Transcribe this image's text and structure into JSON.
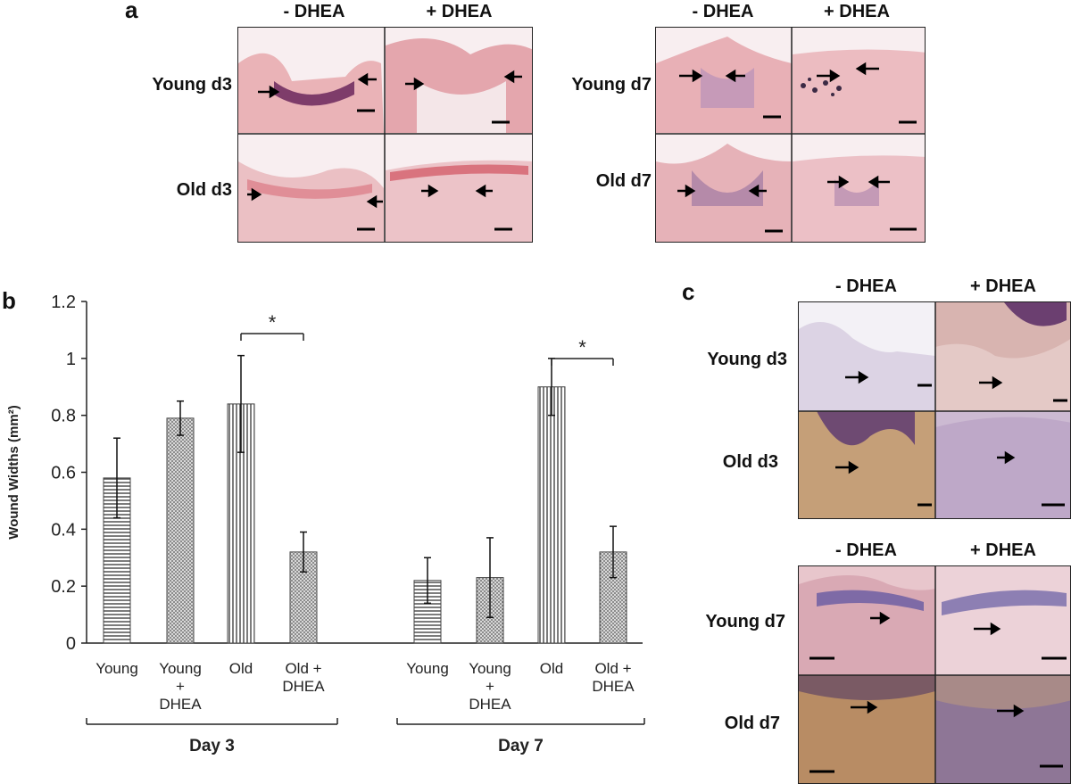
{
  "panels": {
    "a": {
      "letter": "a",
      "left": {
        "columns": [
          "- DHEA",
          "+ DHEA"
        ],
        "rows": [
          "Young d3",
          "Old d3"
        ]
      },
      "right": {
        "columns": [
          "- DHEA",
          "+ DHEA"
        ],
        "rows": [
          "Young d7",
          "Old d7"
        ]
      }
    },
    "b": {
      "letter": "b"
    },
    "c": {
      "letter": "c",
      "top": {
        "columns": [
          "- DHEA",
          "+ DHEA"
        ],
        "rows": [
          "Young d3",
          "Old d3"
        ]
      },
      "bottom": {
        "columns": [
          "- DHEA",
          "+ DHEA"
        ],
        "rows": [
          "Young d7",
          "Old d7"
        ]
      }
    }
  },
  "colors": {
    "he_pink": "#e9b7bd",
    "he_purple": "#9a6fa6",
    "ihc_blue": "#c9c4dc",
    "ihc_brown": "#c79a6a"
  },
  "chart_data": {
    "type": "bar",
    "ylabel": "Wound Widths (mm²)",
    "ylim": [
      0,
      1.2
    ],
    "yticks": [
      "0",
      "0.2",
      "0.4",
      "0.6",
      "0.8",
      "1",
      "1.2"
    ],
    "groups": [
      {
        "name": "Day 3",
        "bars": [
          {
            "label": [
              "Young"
            ],
            "value": 0.58,
            "error": 0.14,
            "pattern": "hstripe"
          },
          {
            "label": [
              "Young",
              "+",
              "DHEA"
            ],
            "value": 0.79,
            "error": 0.06,
            "pattern": "dots"
          },
          {
            "label": [
              "Old"
            ],
            "value": 0.84,
            "error": 0.17,
            "pattern": "vstripe"
          },
          {
            "label": [
              "Old +",
              "DHEA"
            ],
            "value": 0.32,
            "error": 0.07,
            "pattern": "dots"
          }
        ],
        "significance": {
          "between": [
            2,
            3
          ],
          "mark": "*"
        }
      },
      {
        "name": "Day 7",
        "bars": [
          {
            "label": [
              "Young"
            ],
            "value": 0.22,
            "error": 0.08,
            "pattern": "hstripe"
          },
          {
            "label": [
              "Young",
              "+",
              "DHEA"
            ],
            "value": 0.23,
            "error": 0.14,
            "pattern": "dots"
          },
          {
            "label": [
              "Old"
            ],
            "value": 0.9,
            "error": 0.1,
            "pattern": "vstripe"
          },
          {
            "label": [
              "Old +",
              "DHEA"
            ],
            "value": 0.32,
            "error": 0.09,
            "pattern": "dots"
          }
        ],
        "significance": {
          "between": [
            2,
            3
          ],
          "mark": "*"
        }
      }
    ]
  }
}
